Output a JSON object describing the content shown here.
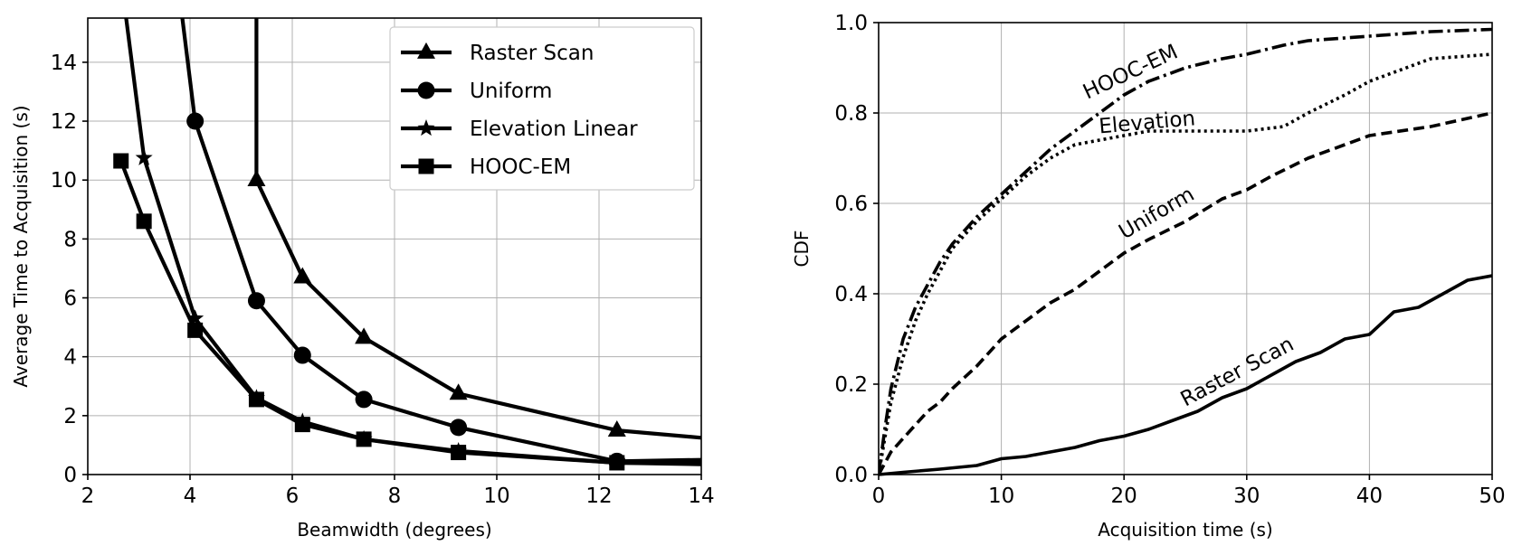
{
  "chart_data": [
    {
      "type": "line",
      "title": "",
      "xlabel": "Beamwidth (degrees)",
      "ylabel": "Average Time to Acquisition (s)",
      "xlim": [
        2,
        14
      ],
      "ylim": [
        0,
        15.5
      ],
      "xticks": [
        "2",
        "4",
        "6",
        "8",
        "10",
        "12",
        "14"
      ],
      "yticks": [
        "0",
        "2",
        "4",
        "6",
        "8",
        "10",
        "12",
        "14"
      ],
      "grid": true,
      "legend_position": "top-right",
      "series": [
        {
          "name": "Raster Scan",
          "marker": "triangle",
          "x": [
            5.3,
            5.3,
            6.2,
            7.4,
            9.25,
            12.35,
            14
          ],
          "y": [
            15.5,
            10.0,
            6.7,
            4.65,
            2.75,
            1.5,
            1.25
          ]
        },
        {
          "name": "Uniform",
          "marker": "circle",
          "x": [
            3.85,
            4.1,
            5.3,
            6.2,
            7.4,
            9.25,
            12.35,
            14
          ],
          "y": [
            15.5,
            12.0,
            5.9,
            4.05,
            2.55,
            1.6,
            0.45,
            0.5
          ]
        },
        {
          "name": "Elevation Linear",
          "marker": "star",
          "x": [
            2.75,
            3.1,
            4.1,
            5.3,
            6.2,
            7.4,
            9.25,
            12.35,
            14
          ],
          "y": [
            15.5,
            10.75,
            5.3,
            2.6,
            1.8,
            1.2,
            0.8,
            0.4,
            0.35
          ]
        },
        {
          "name": "HOOC-EM",
          "marker": "square",
          "x": [
            2.65,
            3.1,
            4.1,
            5.3,
            6.2,
            7.4,
            9.25,
            12.35,
            14
          ],
          "y": [
            10.65,
            8.6,
            4.9,
            2.55,
            1.7,
            1.2,
            0.75,
            0.4,
            0.4
          ]
        }
      ]
    },
    {
      "type": "line",
      "title": "",
      "xlabel": "Acquisition time (s)",
      "ylabel": "CDF",
      "xlim": [
        0,
        50
      ],
      "ylim": [
        0,
        1.0
      ],
      "xticks": [
        "0",
        "10",
        "20",
        "30",
        "40",
        "50"
      ],
      "yticks": [
        "0.0",
        "0.2",
        "0.4",
        "0.6",
        "0.8",
        "1.0"
      ],
      "grid": true,
      "series": [
        {
          "name": "HOOC-EM",
          "style": "dashdot",
          "x": [
            0,
            0.5,
            1,
            2,
            3,
            4,
            5,
            6,
            8,
            10,
            12,
            14,
            16,
            18,
            20,
            22,
            25,
            28,
            30,
            33,
            35,
            40,
            45,
            50
          ],
          "y": [
            0,
            0.1,
            0.19,
            0.3,
            0.37,
            0.42,
            0.47,
            0.51,
            0.57,
            0.62,
            0.67,
            0.72,
            0.76,
            0.8,
            0.84,
            0.87,
            0.9,
            0.92,
            0.93,
            0.95,
            0.96,
            0.97,
            0.98,
            0.985
          ]
        },
        {
          "name": "Elevation",
          "style": "dotted",
          "x": [
            0,
            0.5,
            1,
            2,
            3,
            4,
            5,
            6,
            8,
            10,
            12,
            14,
            16,
            18,
            20,
            22,
            25,
            28,
            30,
            33,
            35,
            38,
            40,
            42,
            45,
            50
          ],
          "y": [
            0,
            0.08,
            0.16,
            0.26,
            0.34,
            0.4,
            0.45,
            0.5,
            0.56,
            0.61,
            0.66,
            0.7,
            0.73,
            0.74,
            0.75,
            0.76,
            0.76,
            0.76,
            0.76,
            0.77,
            0.8,
            0.84,
            0.87,
            0.89,
            0.92,
            0.93
          ]
        },
        {
          "name": "Uniform",
          "style": "dashed",
          "x": [
            0,
            1,
            2,
            3,
            4,
            5,
            6,
            8,
            10,
            12,
            14,
            16,
            18,
            20,
            22,
            25,
            28,
            30,
            32,
            35,
            38,
            40,
            45,
            50
          ],
          "y": [
            0,
            0.05,
            0.08,
            0.11,
            0.14,
            0.16,
            0.19,
            0.24,
            0.3,
            0.34,
            0.38,
            0.41,
            0.45,
            0.49,
            0.52,
            0.56,
            0.61,
            0.63,
            0.66,
            0.7,
            0.73,
            0.75,
            0.77,
            0.8
          ]
        },
        {
          "name": "Raster Scan",
          "style": "solid",
          "x": [
            0,
            2,
            5,
            8,
            10,
            12,
            14,
            16,
            18,
            20,
            22,
            24,
            26,
            28,
            30,
            32,
            34,
            36,
            38,
            40,
            42,
            44,
            46,
            48,
            50
          ],
          "y": [
            0,
            0.005,
            0.012,
            0.02,
            0.035,
            0.04,
            0.05,
            0.06,
            0.075,
            0.085,
            0.1,
            0.12,
            0.14,
            0.17,
            0.19,
            0.22,
            0.25,
            0.27,
            0.3,
            0.31,
            0.36,
            0.37,
            0.4,
            0.43,
            0.44
          ]
        }
      ],
      "annotations": [
        {
          "text": "HOOC-EM",
          "x": 17,
          "y": 0.83,
          "rotation": -25
        },
        {
          "text": "Elevation",
          "x": 18,
          "y": 0.755,
          "rotation": -5
        },
        {
          "text": "Uniform",
          "x": 20,
          "y": 0.52,
          "rotation": -30
        },
        {
          "text": "Raster Scan",
          "x": 25,
          "y": 0.15,
          "rotation": -28
        }
      ]
    }
  ]
}
